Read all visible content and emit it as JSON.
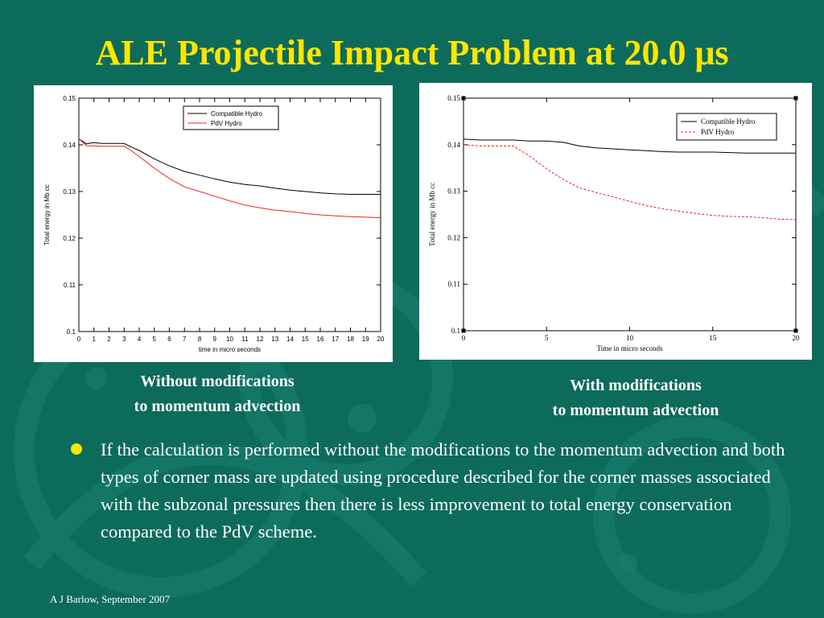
{
  "slide": {
    "title": "ALE Projectile Impact Problem at 20.0 μs",
    "caption_left_line1": "Without modifications",
    "caption_left_line2": "to momentum advection",
    "caption_right_line1": "With modifications",
    "caption_right_line2": "to momentum advection",
    "bullet_text": "If the calculation is performed without the modifications to the momentum advection and both types of corner mass are updated using procedure described for the corner masses associated with the subzonal pressures then there is less improvement to total energy conservation compared to the PdV scheme.",
    "footer": "A J Barlow, September 2007",
    "colors": {
      "background": "#0d6b5c",
      "title": "#ffe600",
      "bullet": "#ffe600",
      "text": "#ffffff"
    }
  },
  "chart_data": [
    {
      "type": "line",
      "xlabel": "time in micro seconds",
      "ylabel": "Total energy in Mb cc",
      "xlim": [
        0,
        20
      ],
      "ylim": [
        0.1,
        0.15
      ],
      "x_ticks": [
        0,
        1,
        2,
        3,
        4,
        5,
        6,
        7,
        8,
        9,
        10,
        11,
        12,
        13,
        14,
        15,
        16,
        17,
        18,
        19,
        20
      ],
      "y_ticks": [
        0.1,
        0.11,
        0.12,
        0.13,
        0.14,
        0.15
      ],
      "x_tick_labels": [
        "0",
        "1",
        "2",
        "3",
        "4",
        "5",
        "6",
        "7",
        "8",
        "9",
        "10",
        "11",
        "12",
        "13",
        "14",
        "15",
        "16",
        "17",
        "18",
        "19",
        "20"
      ],
      "y_tick_labels": [
        "0.1",
        "0.11",
        "0.12",
        "0.13",
        "0.14",
        "0.15"
      ],
      "legend_position": "top-right",
      "series": [
        {
          "name": "Compatible Hydro",
          "color": "#000000",
          "dash": "solid",
          "x": [
            0,
            0.5,
            1,
            1.5,
            2,
            2.5,
            3,
            3.5,
            4,
            5,
            6,
            7,
            8,
            9,
            10,
            11,
            12,
            13,
            14,
            15,
            16,
            17,
            18,
            19,
            20
          ],
          "y": [
            0.1413,
            0.1402,
            0.1405,
            0.1403,
            0.1403,
            0.1403,
            0.1403,
            0.1395,
            0.1388,
            0.137,
            0.1355,
            0.1343,
            0.1335,
            0.1327,
            0.132,
            0.1315,
            0.1312,
            0.1307,
            0.1303,
            0.13,
            0.1297,
            0.1295,
            0.1294,
            0.1294,
            0.1294
          ]
        },
        {
          "name": "PdV Hydro",
          "color": "#ee2222",
          "dash": "solid",
          "x": [
            0,
            0.5,
            1,
            1.5,
            2,
            2.5,
            3,
            3.5,
            4,
            5,
            6,
            7,
            8,
            9,
            10,
            11,
            12,
            13,
            14,
            15,
            16,
            17,
            18,
            19,
            20
          ],
          "y": [
            0.1413,
            0.1398,
            0.1398,
            0.1397,
            0.1397,
            0.1397,
            0.1397,
            0.1387,
            0.1375,
            0.135,
            0.1328,
            0.131,
            0.13,
            0.129,
            0.128,
            0.1271,
            0.1265,
            0.126,
            0.1257,
            0.1253,
            0.125,
            0.1248,
            0.1246,
            0.1245,
            0.1244
          ]
        }
      ]
    },
    {
      "type": "line",
      "xlabel": "Time in micro seconds",
      "ylabel": "Total energy in Mb cc",
      "xlim": [
        0,
        20
      ],
      "ylim": [
        0.1,
        0.15
      ],
      "x_ticks": [
        0,
        5,
        10,
        15,
        20
      ],
      "y_ticks": [
        0.1,
        0.11,
        0.12,
        0.13,
        0.14,
        0.15
      ],
      "x_tick_labels": [
        "0",
        "5",
        "10",
        "15",
        "20"
      ],
      "y_tick_labels": [
        "0.1",
        "0.11",
        "0.12",
        "0.13",
        "0.14",
        "0.15"
      ],
      "legend_position": "top-right",
      "series": [
        {
          "name": "Compatible Hydro",
          "color": "#000000",
          "dash": "solid",
          "x": [
            0,
            1,
            2,
            3,
            4,
            5,
            6,
            7,
            8,
            9,
            10,
            11,
            12,
            13,
            14,
            15,
            16,
            17,
            18,
            19,
            20
          ],
          "y": [
            0.1412,
            0.141,
            0.141,
            0.141,
            0.1408,
            0.1408,
            0.1405,
            0.1397,
            0.1393,
            0.1391,
            0.1389,
            0.1387,
            0.1385,
            0.1384,
            0.1384,
            0.1384,
            0.1383,
            0.1382,
            0.1382,
            0.1382,
            0.1382
          ]
        },
        {
          "name": "PdV Hydro",
          "color": "#ee2222",
          "dash": "dashed",
          "x": [
            0,
            1,
            2,
            3,
            4,
            5,
            6,
            7,
            8,
            9,
            10,
            11,
            12,
            13,
            14,
            15,
            16,
            17,
            18,
            19,
            20
          ],
          "y": [
            0.14,
            0.1397,
            0.1397,
            0.1397,
            0.1375,
            0.1348,
            0.1325,
            0.1307,
            0.1297,
            0.1288,
            0.1278,
            0.1269,
            0.1262,
            0.1257,
            0.1252,
            0.1248,
            0.1246,
            0.1245,
            0.1243,
            0.124,
            0.1239
          ]
        }
      ]
    }
  ]
}
